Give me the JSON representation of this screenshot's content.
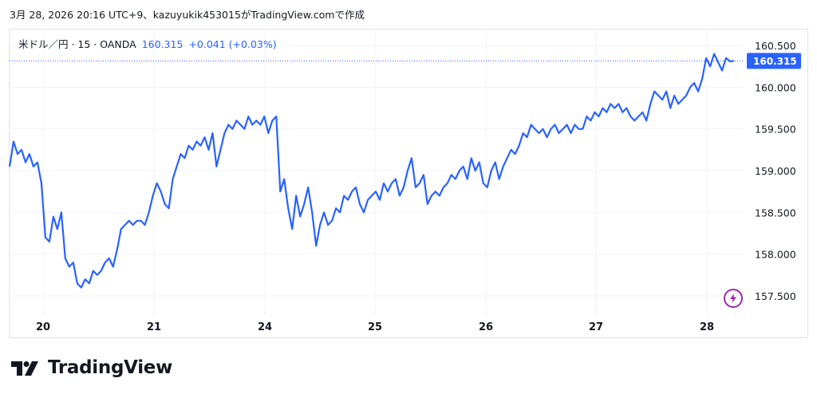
{
  "caption": "3月 28, 2026 20:16 UTC+9、kazuyukik453015がTradingView.comで作成",
  "legend": {
    "symbol": "米ドル／円 · 15 · OANDA",
    "last": "160.315",
    "change": "+0.041 (+0.03%)"
  },
  "brand": {
    "name": "TradingView",
    "logo_icon": "tradingview-logo-icon"
  },
  "colors": {
    "line": "#2962ff",
    "label_bg": "#2962ff",
    "grid": "#f0f3fa",
    "text": "#131722",
    "bolt": "#9c27b0"
  },
  "chart_data": {
    "type": "line",
    "title": "",
    "xlabel": "",
    "ylabel": "",
    "ylim": [
      157.2,
      160.75
    ],
    "y_ticks": [
      "157.500",
      "158.000",
      "158.500",
      "159.000",
      "159.500",
      "160.000",
      "160.500"
    ],
    "x_ticks": [
      "20",
      "21",
      "24",
      "25",
      "26",
      "27",
      "28"
    ],
    "last_price_label": "160.315",
    "grid": true,
    "series": [
      {
        "values": [
          159.05,
          159.35,
          159.2,
          159.25,
          159.1,
          159.2,
          159.05,
          159.1,
          158.85,
          158.2,
          158.15,
          158.45,
          158.3,
          158.5,
          157.95,
          157.85,
          157.9,
          157.65,
          157.6,
          157.7,
          157.65,
          157.8,
          157.75,
          157.8,
          157.9,
          157.95,
          157.85,
          158.05,
          158.3,
          158.35,
          158.4,
          158.35,
          158.4,
          158.4,
          158.35,
          158.5,
          158.7,
          158.85,
          158.75,
          158.6,
          158.55,
          158.9,
          159.05,
          159.2,
          159.15,
          159.3,
          159.25,
          159.35,
          159.3,
          159.4,
          159.25,
          159.45,
          159.05,
          159.25,
          159.45,
          159.55,
          159.5,
          159.6,
          159.55,
          159.5,
          159.65,
          159.55,
          159.6,
          159.55,
          159.65,
          159.45,
          159.6,
          159.65,
          158.75,
          158.9,
          158.55,
          158.3,
          158.7,
          158.45,
          158.6,
          158.8,
          158.5,
          158.1,
          158.35,
          158.5,
          158.35,
          158.4,
          158.55,
          158.5,
          158.7,
          158.65,
          158.75,
          158.8,
          158.6,
          158.5,
          158.65,
          158.7,
          158.75,
          158.65,
          158.85,
          158.75,
          158.85,
          158.9,
          158.7,
          158.8,
          159.0,
          159.15,
          158.8,
          158.85,
          158.95,
          158.6,
          158.7,
          158.75,
          158.7,
          158.8,
          158.85,
          158.95,
          158.9,
          159.0,
          159.05,
          158.9,
          159.15,
          159.0,
          159.1,
          158.85,
          158.8,
          159.0,
          159.1,
          158.9,
          159.05,
          159.15,
          159.25,
          159.2,
          159.3,
          159.45,
          159.4,
          159.55,
          159.5,
          159.45,
          159.5,
          159.4,
          159.5,
          159.55,
          159.45,
          159.5,
          159.55,
          159.45,
          159.55,
          159.5,
          159.5,
          159.65,
          159.6,
          159.7,
          159.65,
          159.75,
          159.7,
          159.8,
          159.75,
          159.8,
          159.7,
          159.75,
          159.65,
          159.6,
          159.65,
          159.7,
          159.6,
          159.8,
          159.95,
          159.9,
          159.85,
          159.95,
          159.75,
          159.9,
          159.8,
          159.85,
          159.9,
          160.0,
          160.05,
          159.95,
          160.1,
          160.35,
          160.25,
          160.4,
          160.3,
          160.2,
          160.35,
          160.31,
          160.315
        ]
      }
    ]
  }
}
